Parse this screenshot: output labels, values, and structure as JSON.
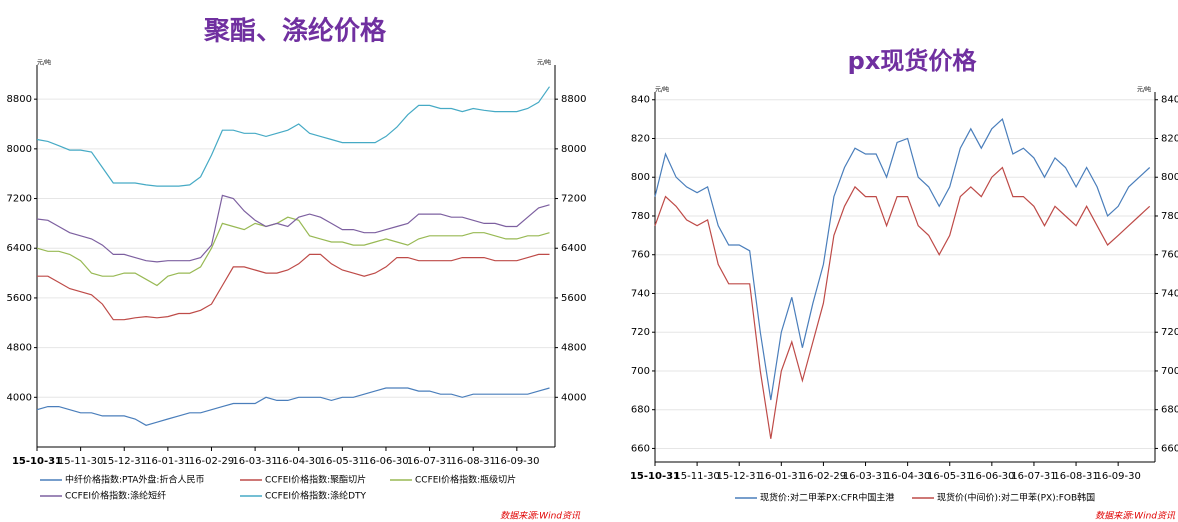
{
  "chart_data": [
    {
      "type": "line",
      "title": "聚酯、涤纶价格",
      "y_label": "元/吨",
      "source": "数据来源:Wind资讯",
      "categories": [
        "15-10-31",
        null,
        null,
        null,
        "15-11-30",
        null,
        null,
        null,
        "15-12-31",
        null,
        null,
        null,
        "16-01-31",
        null,
        null,
        null,
        "16-02-29",
        null,
        null,
        null,
        "16-03-31",
        null,
        null,
        null,
        "16-04-30",
        null,
        null,
        null,
        "16-05-31",
        null,
        null,
        null,
        "16-06-30",
        null,
        null,
        null,
        "16-07-31",
        null,
        null,
        null,
        "16-08-31",
        null,
        null,
        null,
        "16-09-30",
        null,
        null,
        null
      ],
      "ylim": [
        3200,
        9350
      ],
      "yticks": [
        4000,
        4800,
        5600,
        6400,
        7200,
        8000,
        8800
      ],
      "grid": true,
      "series": [
        {
          "name": "中纤价格指数:PTA外盘:折合人民币",
          "color": "#4a7ebb",
          "values": [
            3800,
            3850,
            3850,
            3800,
            3750,
            3750,
            3700,
            3700,
            3700,
            3650,
            3550,
            3600,
            3650,
            3700,
            3750,
            3750,
            3800,
            3850,
            3900,
            3900,
            3900,
            4000,
            3950,
            3950,
            4000,
            4000,
            4000,
            3950,
            4000,
            4000,
            4050,
            4100,
            4150,
            4150,
            4150,
            4100,
            4100,
            4050,
            4050,
            4000,
            4050,
            4050,
            4050,
            4050,
            4050,
            4050,
            4100,
            4150
          ]
        },
        {
          "name": "CCFEI价格指数:聚酯切片",
          "color": "#be4b48",
          "values": [
            5950,
            5950,
            5850,
            5750,
            5700,
            5650,
            5500,
            5250,
            5250,
            5280,
            5300,
            5280,
            5300,
            5350,
            5350,
            5400,
            5500,
            5800,
            6100,
            6100,
            6050,
            6000,
            6000,
            6050,
            6150,
            6300,
            6300,
            6150,
            6050,
            6000,
            5950,
            6000,
            6100,
            6250,
            6250,
            6200,
            6200,
            6200,
            6200,
            6250,
            6250,
            6250,
            6200,
            6200,
            6200,
            6250,
            6300,
            6300
          ]
        },
        {
          "name": "CCFEI价格指数:瓶级切片",
          "color": "#98b954",
          "values": [
            6400,
            6350,
            6350,
            6300,
            6200,
            6000,
            5950,
            5950,
            6000,
            6000,
            5900,
            5800,
            5950,
            6000,
            6000,
            6100,
            6400,
            6800,
            6750,
            6700,
            6800,
            6750,
            6800,
            6900,
            6850,
            6600,
            6550,
            6500,
            6500,
            6450,
            6450,
            6500,
            6550,
            6500,
            6450,
            6550,
            6600,
            6600,
            6600,
            6600,
            6650,
            6650,
            6600,
            6550,
            6550,
            6600,
            6600,
            6650
          ]
        },
        {
          "name": "CCFEI价格指数:涤纶短纤",
          "color": "#7d60a0",
          "values": [
            6870,
            6850,
            6750,
            6650,
            6600,
            6550,
            6450,
            6300,
            6300,
            6250,
            6200,
            6180,
            6200,
            6200,
            6200,
            6250,
            6450,
            7250,
            7200,
            7000,
            6850,
            6750,
            6800,
            6750,
            6900,
            6950,
            6900,
            6800,
            6700,
            6700,
            6650,
            6650,
            6700,
            6750,
            6800,
            6950,
            6950,
            6950,
            6900,
            6900,
            6850,
            6800,
            6800,
            6750,
            6750,
            6900,
            7050,
            7100
          ]
        },
        {
          "name": "CCFEI价格指数:涤纶DTY",
          "color": "#46aac5",
          "values": [
            8150,
            8120,
            8050,
            7980,
            7980,
            7950,
            7700,
            7450,
            7450,
            7450,
            7420,
            7400,
            7400,
            7400,
            7420,
            7550,
            7900,
            8300,
            8300,
            8250,
            8250,
            8200,
            8250,
            8300,
            8400,
            8250,
            8200,
            8150,
            8100,
            8100,
            8100,
            8100,
            8200,
            8350,
            8550,
            8700,
            8700,
            8650,
            8650,
            8600,
            8650,
            8620,
            8600,
            8600,
            8600,
            8650,
            8750,
            9000
          ]
        }
      ]
    },
    {
      "type": "line",
      "title": "px现货价格",
      "y_label": "元/吨",
      "source": "数据来源:Wind资讯",
      "categories": [
        "15-10-31",
        null,
        null,
        null,
        "15-11-30",
        null,
        null,
        null,
        "15-12-31",
        null,
        null,
        null,
        "16-01-31",
        null,
        null,
        null,
        "16-02-29",
        null,
        null,
        null,
        "16-03-31",
        null,
        null,
        null,
        "16-04-30",
        null,
        null,
        null,
        "16-05-31",
        null,
        null,
        null,
        "16-06-30",
        null,
        null,
        null,
        "16-07-31",
        null,
        null,
        null,
        "16-08-31",
        null,
        null,
        null,
        "16-09-30",
        null,
        null,
        null
      ],
      "ylim": [
        653,
        844
      ],
      "yticks": [
        660,
        680,
        700,
        720,
        740,
        760,
        780,
        800,
        820,
        840
      ],
      "grid": true,
      "series": [
        {
          "name": "现货价:对二甲苯PX:CFR中国主港",
          "color": "#4a7ebb",
          "values": [
            790,
            812,
            800,
            795,
            792,
            795,
            775,
            765,
            765,
            762,
            720,
            685,
            720,
            738,
            712,
            735,
            755,
            790,
            805,
            815,
            812,
            812,
            800,
            818,
            820,
            800,
            795,
            785,
            795,
            815,
            825,
            815,
            825,
            830,
            812,
            815,
            810,
            800,
            810,
            805,
            795,
            805,
            795,
            780,
            785,
            795,
            800,
            805
          ]
        },
        {
          "name": "现货价(中间价):对二甲苯(PX):FOB韩国",
          "color": "#be4b48",
          "values": [
            775,
            790,
            785,
            778,
            775,
            778,
            755,
            745,
            745,
            745,
            700,
            665,
            700,
            715,
            695,
            715,
            735,
            770,
            785,
            795,
            790,
            790,
            775,
            790,
            790,
            775,
            770,
            760,
            770,
            790,
            795,
            790,
            800,
            805,
            790,
            790,
            785,
            775,
            785,
            780,
            775,
            785,
            775,
            765,
            770,
            775,
            780,
            785
          ]
        }
      ]
    }
  ]
}
